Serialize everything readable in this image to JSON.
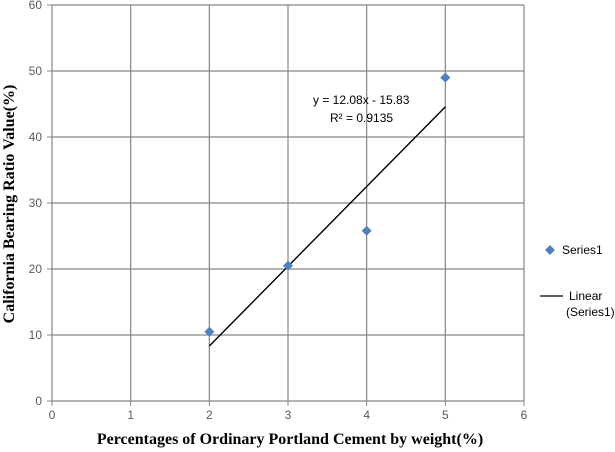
{
  "chart_data": {
    "type": "scatter",
    "xlabel": "Percentages of Ordinary Portland Cement by weight(%)",
    "ylabel": "California Bearing Ratio Value(%)",
    "xlim": [
      0,
      6
    ],
    "ylim": [
      0,
      60
    ],
    "xticks": [
      "0",
      "1",
      "2",
      "3",
      "4",
      "5",
      "6"
    ],
    "yticks": [
      "0",
      "10",
      "20",
      "30",
      "40",
      "50",
      "60"
    ],
    "grid": true,
    "legend_position": "right",
    "series": [
      {
        "name": "Series1",
        "marker": "diamond",
        "color": "#4f81bd",
        "points": [
          {
            "x": 2,
            "y": 10.5
          },
          {
            "x": 3,
            "y": 20.5
          },
          {
            "x": 4,
            "y": 25.8
          },
          {
            "x": 5,
            "y": 49
          }
        ]
      }
    ],
    "trendline": {
      "name": "Linear (Series1)",
      "legend_lines": [
        "Linear",
        "(Series1)"
      ],
      "type": "linear",
      "slope": 12.08,
      "intercept": -15.83,
      "x_range": [
        2,
        5
      ],
      "color": "#000000",
      "equation_label": "y = 12.08x - 15.83",
      "r2_label": "R² = 0.9135"
    }
  }
}
